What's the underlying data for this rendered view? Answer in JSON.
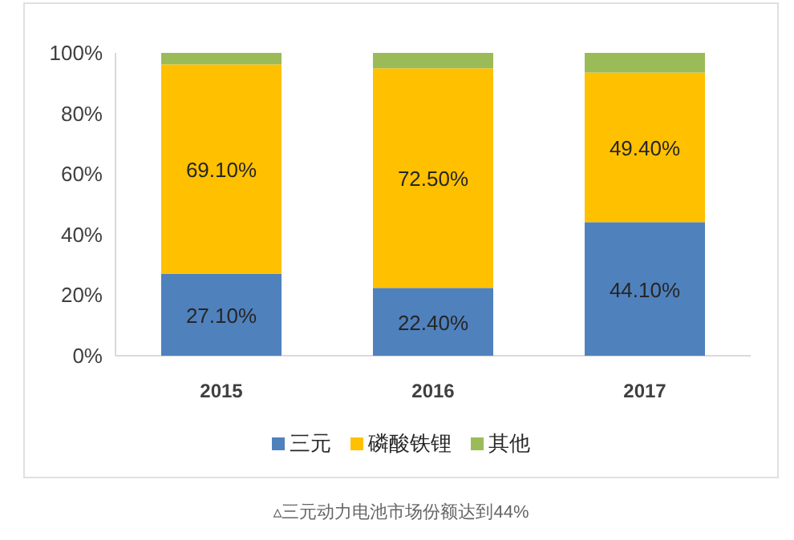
{
  "chart_data": {
    "type": "bar",
    "stacked": true,
    "categories": [
      "2015",
      "2016",
      "2017"
    ],
    "series": [
      {
        "name": "三元",
        "color": "#4f81bd",
        "values": [
          27.1,
          22.4,
          44.1
        ],
        "value_labels": [
          "27.10%",
          "22.40%",
          "44.10%"
        ]
      },
      {
        "name": "磷酸铁锂",
        "color": "#ffc000",
        "values": [
          69.1,
          72.5,
          49.4
        ],
        "value_labels": [
          "69.10%",
          "72.50%",
          "49.40%"
        ]
      },
      {
        "name": "其他",
        "color": "#9bbb59",
        "values": [
          3.8,
          5.1,
          6.5
        ]
      }
    ],
    "ylim": [
      0,
      100
    ],
    "yticks": [
      {
        "value": 0,
        "label": "0%"
      },
      {
        "value": 20,
        "label": "20%"
      },
      {
        "value": 40,
        "label": "40%"
      },
      {
        "value": 60,
        "label": "60%"
      },
      {
        "value": 80,
        "label": "80%"
      },
      {
        "value": 100,
        "label": "100%"
      }
    ],
    "legend": "bottom",
    "grid": false,
    "annotations": [
      "▵三元动力电池市场份额达到44%"
    ]
  }
}
